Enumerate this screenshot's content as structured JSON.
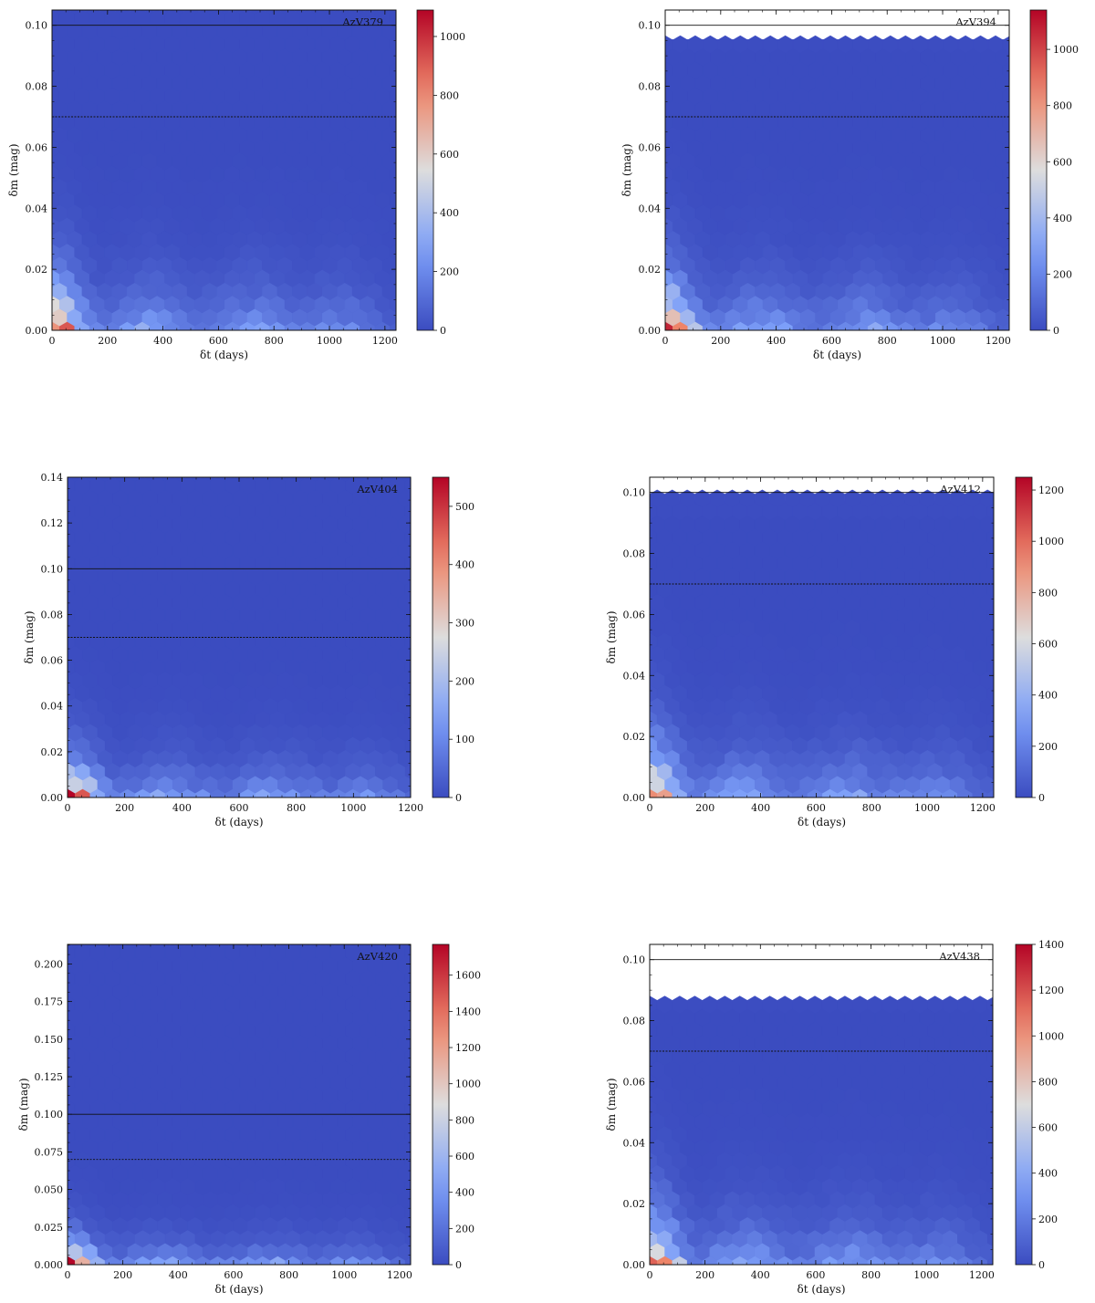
{
  "chart_data": [
    {
      "type": "heatmap",
      "subtype": "hexbin",
      "label": "AzV379",
      "xlabel": "δt (days)",
      "ylabel": "δm (mag)",
      "xlim": [
        0,
        1240
      ],
      "ylim": [
        0,
        0.105
      ],
      "xticks": [
        0,
        200,
        400,
        600,
        800,
        1000,
        1200
      ],
      "yticks": [
        0.0,
        0.02,
        0.04,
        0.06,
        0.08,
        0.1
      ],
      "ytick_decimals": 2,
      "colorbar": {
        "min": 0,
        "max": 1090,
        "ticks": [
          0,
          200,
          400,
          600,
          800,
          1000
        ]
      },
      "data_top": 0.105,
      "hlines": [
        {
          "y": 0.1,
          "style": "solid"
        },
        {
          "y": 0.07,
          "style": "dotted"
        }
      ],
      "grid": false,
      "colormap": "coolwarm"
    },
    {
      "type": "heatmap",
      "subtype": "hexbin",
      "label": "AzV394",
      "xlabel": "δt (days)",
      "ylabel": "δm (mag)",
      "xlim": [
        0,
        1240
      ],
      "ylim": [
        0,
        0.105
      ],
      "xticks": [
        0,
        200,
        400,
        600,
        800,
        1000,
        1200
      ],
      "yticks": [
        0.0,
        0.02,
        0.04,
        0.06,
        0.08,
        0.1
      ],
      "ytick_decimals": 2,
      "colorbar": {
        "min": 0,
        "max": 1140,
        "ticks": [
          0,
          200,
          400,
          600,
          800,
          1000
        ]
      },
      "data_top": 0.096,
      "hlines": [
        {
          "y": 0.1,
          "style": "solid"
        },
        {
          "y": 0.07,
          "style": "dotted"
        }
      ],
      "grid": false,
      "colormap": "coolwarm"
    },
    {
      "type": "heatmap",
      "subtype": "hexbin",
      "label": "AzV404",
      "xlabel": "δt (days)",
      "ylabel": "δm (mag)",
      "xlim": [
        0,
        1200
      ],
      "ylim": [
        0,
        0.14
      ],
      "xticks": [
        0,
        200,
        400,
        600,
        800,
        1000,
        1200
      ],
      "yticks": [
        0.0,
        0.02,
        0.04,
        0.06,
        0.08,
        0.1,
        0.12,
        0.14
      ],
      "ytick_decimals": 2,
      "colorbar": {
        "min": 0,
        "max": 550,
        "ticks": [
          0,
          100,
          200,
          300,
          400,
          500
        ]
      },
      "data_top": 0.14,
      "hlines": [
        {
          "y": 0.1,
          "style": "solid"
        },
        {
          "y": 0.07,
          "style": "dotted"
        }
      ],
      "grid": false,
      "colormap": "coolwarm"
    },
    {
      "type": "heatmap",
      "subtype": "hexbin",
      "label": "AzV412",
      "xlabel": "δt (days)",
      "ylabel": "δm (mag)",
      "xlim": [
        0,
        1240
      ],
      "ylim": [
        0,
        0.105
      ],
      "xticks": [
        0,
        200,
        400,
        600,
        800,
        1000,
        1200
      ],
      "yticks": [
        0.0,
        0.02,
        0.04,
        0.06,
        0.08,
        0.1
      ],
      "ytick_decimals": 2,
      "colorbar": {
        "min": 0,
        "max": 1250,
        "ticks": [
          0,
          200,
          400,
          600,
          800,
          1000,
          1200
        ]
      },
      "data_top": 0.098,
      "hlines": [
        {
          "y": 0.1,
          "style": "solid"
        },
        {
          "y": 0.07,
          "style": "dotted"
        }
      ],
      "grid": false,
      "colormap": "coolwarm"
    },
    {
      "type": "heatmap",
      "subtype": "hexbin",
      "label": "AzV420",
      "xlabel": "δt (days)",
      "ylabel": "δm (mag)",
      "xlim": [
        0,
        1240
      ],
      "ylim": [
        0,
        0.213
      ],
      "xticks": [
        0,
        200,
        400,
        600,
        800,
        1000,
        1200
      ],
      "yticks": [
        0.0,
        0.025,
        0.05,
        0.075,
        0.1,
        0.125,
        0.15,
        0.175,
        0.2
      ],
      "ytick_decimals": 3,
      "colorbar": {
        "min": 0,
        "max": 1770,
        "ticks": [
          0,
          200,
          400,
          600,
          800,
          1000,
          1200,
          1400,
          1600
        ]
      },
      "data_top": 0.213,
      "hlines": [
        {
          "y": 0.1,
          "style": "solid"
        },
        {
          "y": 0.07,
          "style": "dotted"
        }
      ],
      "grid": false,
      "colormap": "coolwarm"
    },
    {
      "type": "heatmap",
      "subtype": "hexbin",
      "label": "AzV438",
      "xlabel": "δt (days)",
      "ylabel": "δm (mag)",
      "xlim": [
        0,
        1240
      ],
      "ylim": [
        0,
        0.105
      ],
      "xticks": [
        0,
        200,
        400,
        600,
        800,
        1000,
        1200
      ],
      "yticks": [
        0.0,
        0.02,
        0.04,
        0.06,
        0.08,
        0.1
      ],
      "ytick_decimals": 2,
      "colorbar": {
        "min": 0,
        "max": 1400,
        "ticks": [
          0,
          200,
          400,
          600,
          800,
          1000,
          1200,
          1400
        ]
      },
      "data_top": 0.087,
      "hlines": [
        {
          "y": 0.1,
          "style": "solid"
        },
        {
          "y": 0.07,
          "style": "dotted"
        }
      ],
      "grid": false,
      "colormap": "coolwarm"
    }
  ]
}
